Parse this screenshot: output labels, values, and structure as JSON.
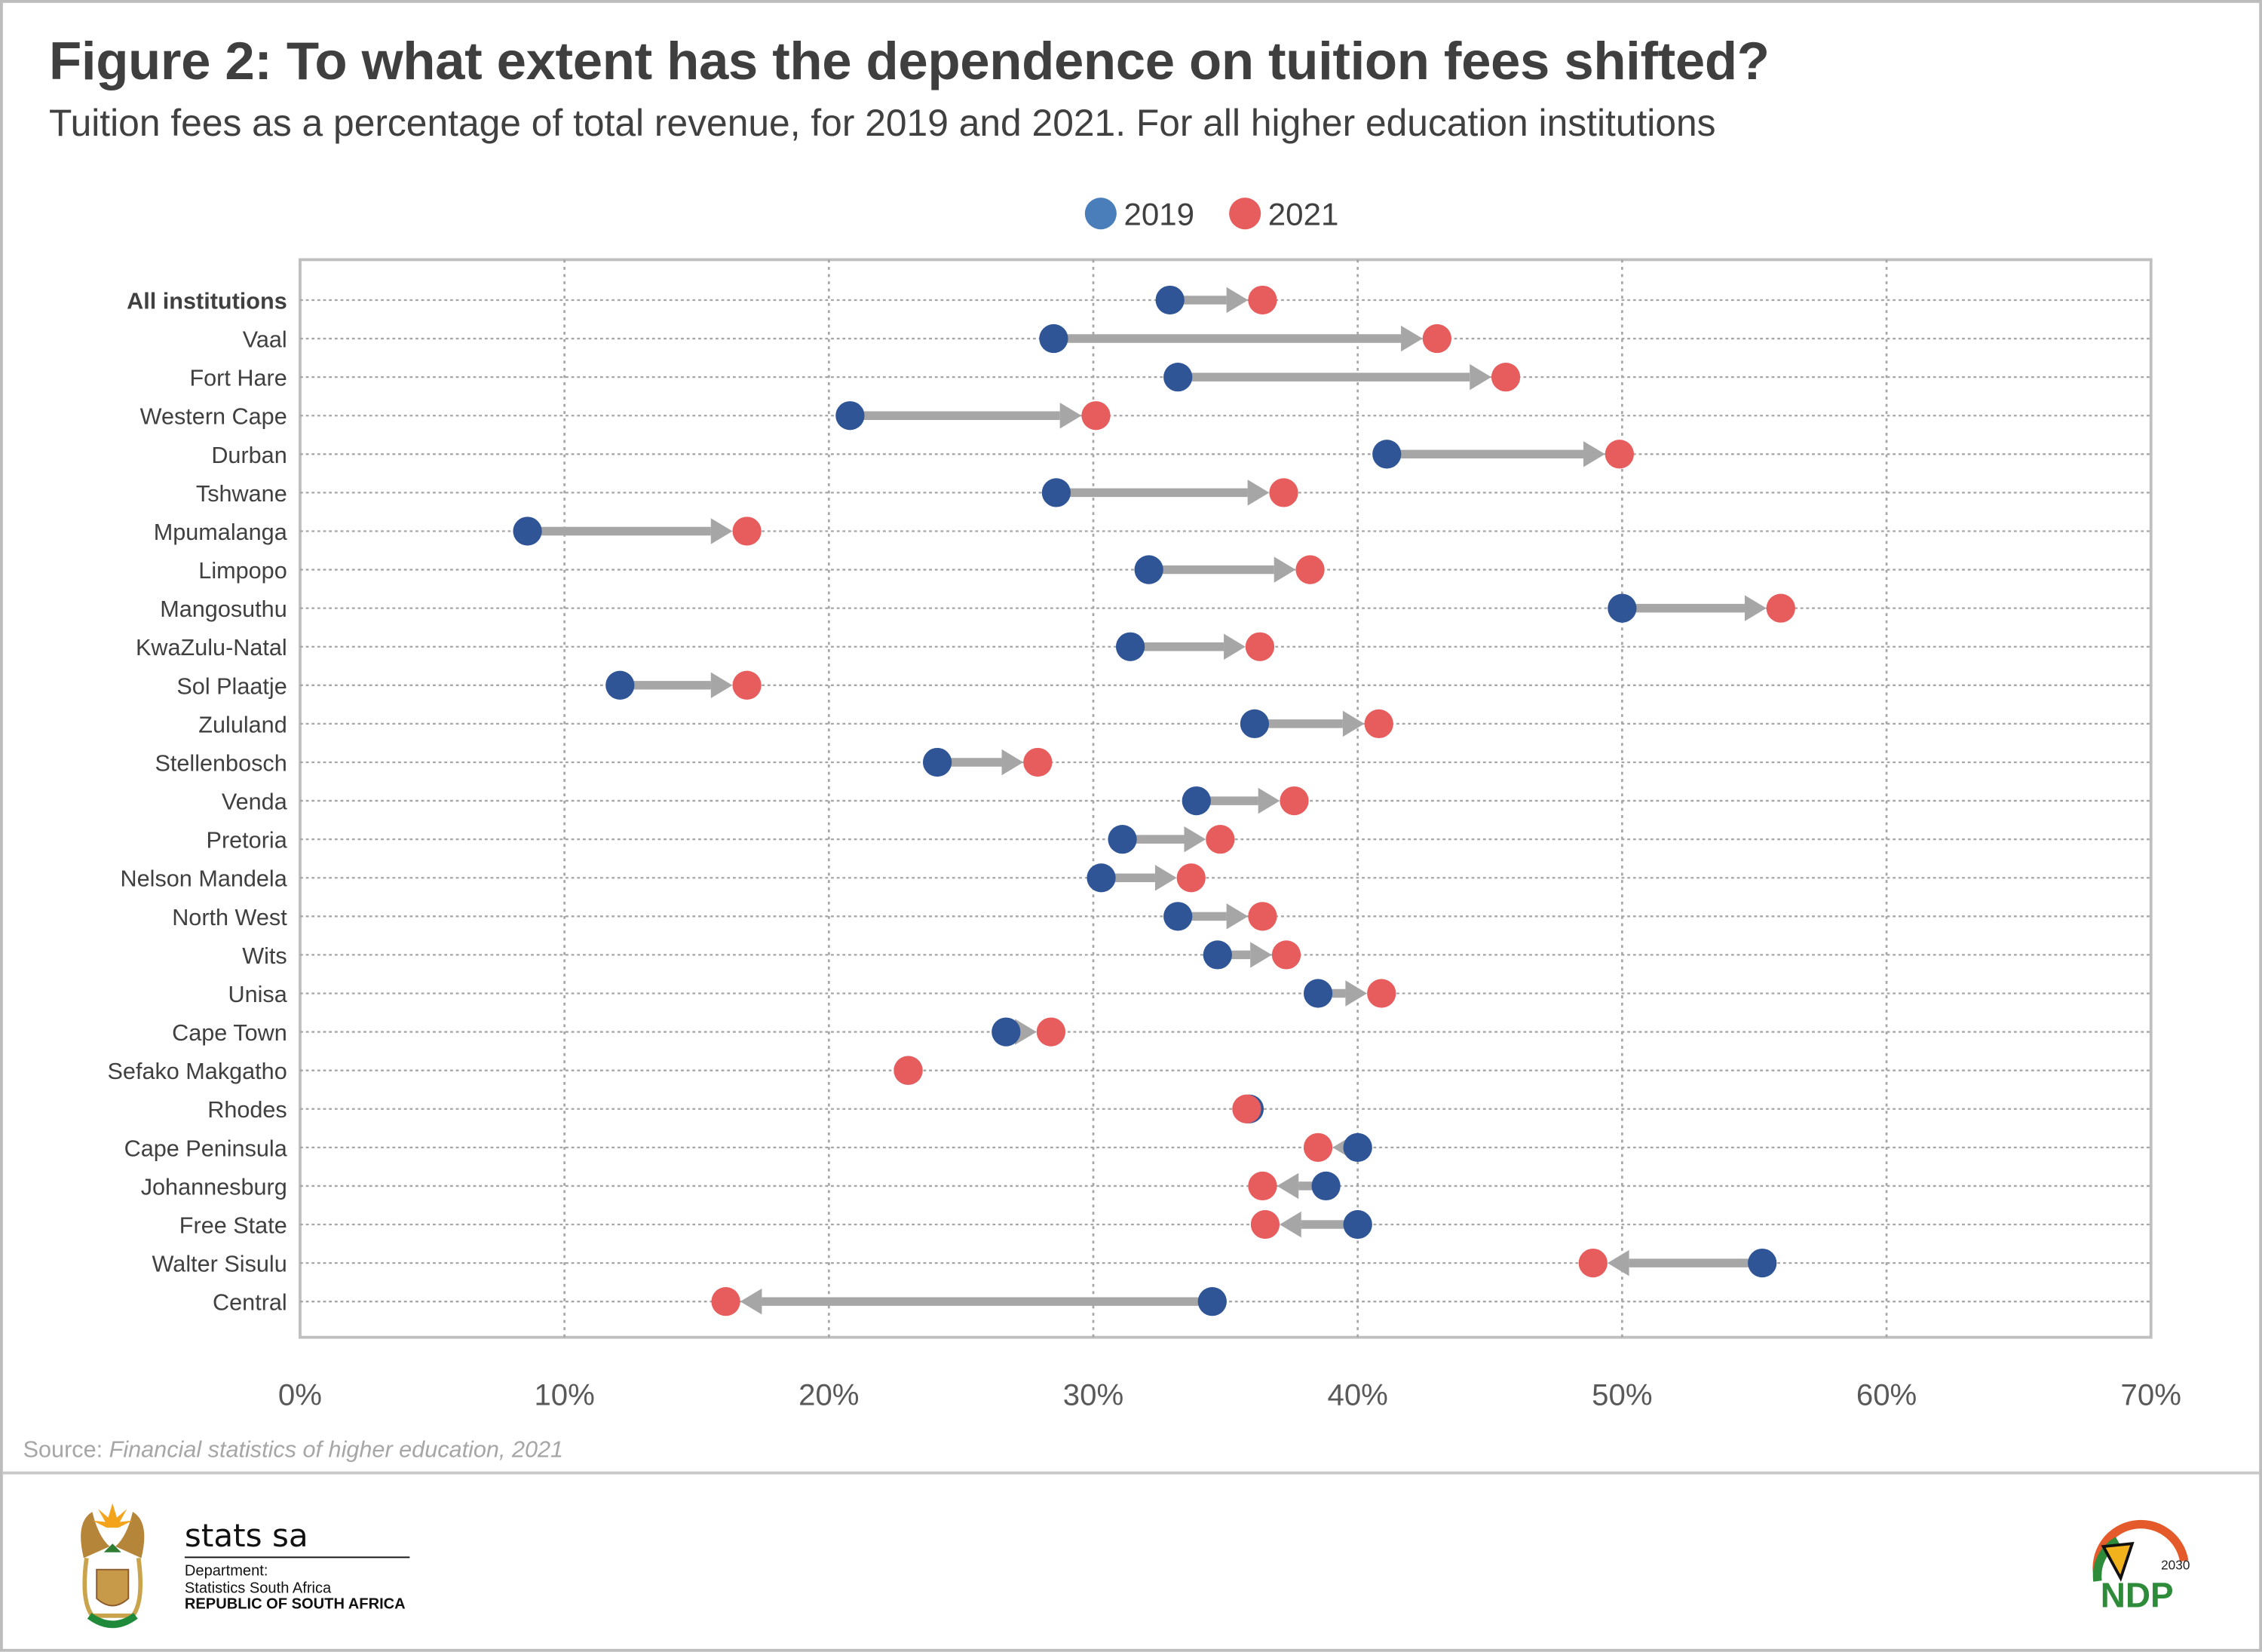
{
  "header": {
    "title": "Figure 2: To what extent has the dependence on tuition fees shifted?",
    "subtitle": "Tuition fees as a percentage of total revenue, for 2019 and 2021. For all higher education institutions"
  },
  "footer": {
    "source_label": "Source: ",
    "source_text": "Financial statistics of higher education, 2021",
    "logo_name": "stats sa",
    "logo_dept": "Department:",
    "logo_dept_name": "Statistics South Africa",
    "logo_country": "REPUBLIC OF SOUTH AFRICA",
    "ndp_logo_text": "NDP",
    "ndp_year": "2030"
  },
  "colors": {
    "c2019": "#2f5597",
    "c2019_legend": "#4a7ebb",
    "c2021": "#e75c5c",
    "arrow": "#a6a6a6",
    "grid": "#a6a6a6"
  },
  "chart_data": {
    "type": "dumbbell-arrow",
    "title": "Figure 2: To what extent has the dependence on tuition fees shifted?",
    "xlabel": "",
    "ylabel": "",
    "xlim": [
      0,
      70
    ],
    "xticks": [
      "0%",
      "10%",
      "20%",
      "30%",
      "40%",
      "50%",
      "60%",
      "70%"
    ],
    "legend": {
      "placement": "top-center",
      "entries": [
        "2019",
        "2021"
      ]
    },
    "grid": true,
    "categories": [
      "All institutions",
      "Vaal",
      "Fort Hare",
      "Western Cape",
      "Durban",
      "Tshwane",
      "Mpumalanga",
      "Limpopo",
      "Mangosuthu",
      "KwaZulu-Natal",
      "Sol Plaatje",
      "Zululand",
      "Stellenbosch",
      "Venda",
      "Pretoria",
      "Nelson Mandela",
      "North West",
      "Wits",
      "Unisa",
      "Cape Town",
      "Sefako Makgatho",
      "Rhodes",
      "Cape Peninsula",
      "Johannesburg",
      "Free State",
      "Walter Sisulu",
      "Central"
    ],
    "series": [
      {
        "name": "2019",
        "values": [
          32.9,
          28.5,
          33.2,
          20.8,
          41.1,
          28.6,
          8.6,
          32.1,
          50.0,
          31.4,
          12.1,
          36.1,
          24.1,
          33.9,
          31.1,
          30.3,
          33.2,
          34.7,
          38.5,
          26.7,
          23.0,
          35.9,
          40.0,
          38.8,
          40.0,
          55.3,
          34.5
        ]
      },
      {
        "name": "2021",
        "values": [
          36.4,
          43.0,
          45.6,
          30.1,
          49.9,
          37.2,
          16.9,
          38.2,
          56.0,
          36.3,
          16.9,
          40.8,
          27.9,
          37.6,
          34.8,
          33.7,
          36.4,
          37.3,
          40.9,
          28.4,
          23.0,
          35.8,
          38.5,
          36.4,
          36.5,
          48.9,
          16.1
        ]
      }
    ]
  }
}
